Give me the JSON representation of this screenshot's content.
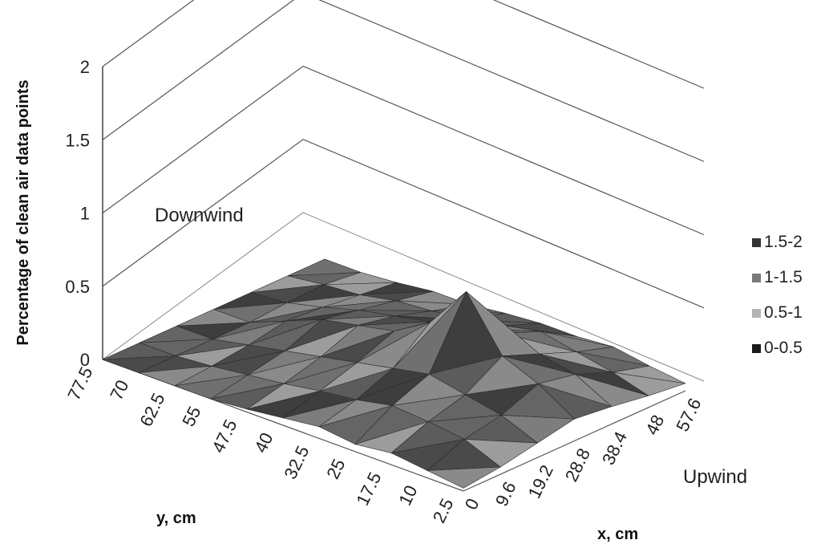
{
  "chart_data": {
    "type": "surface-3d",
    "z_axis": {
      "label": "Percentage of clean air data points",
      "ticks": [
        "0",
        "0.5",
        "1",
        "1.5",
        "2"
      ],
      "range": [
        0,
        2
      ]
    },
    "y_axis": {
      "label": "y, cm",
      "ticks": [
        "77.5",
        "70",
        "62.5",
        "55",
        "47.5",
        "40",
        "32.5",
        "25",
        "17.5",
        "10",
        "2.5"
      ]
    },
    "x_axis": {
      "label": "x, cm",
      "ticks": [
        "0",
        "9.6",
        "19.2",
        "28.8",
        "38.4",
        "48",
        "57.6"
      ]
    },
    "annotations": {
      "downwind": "Downwind",
      "upwind": "Upwind"
    },
    "legend": [
      {
        "label": "1.5-2",
        "color": "#333333"
      },
      {
        "label": "1-1.5",
        "color": "#7a7a7a"
      },
      {
        "label": "0.5-1",
        "color": "#b5b5b5"
      },
      {
        "label": "0-0.5",
        "color": "#1a1a1a"
      }
    ],
    "surface_grid": [
      [
        0.0,
        0.0,
        0.0,
        0.0,
        0.0,
        0.0,
        0.0
      ],
      [
        0.0,
        0.0,
        0.0,
        0.0,
        0.02,
        0.03,
        0.0
      ],
      [
        0.0,
        0.02,
        0.05,
        0.1,
        0.08,
        0.05,
        0.02
      ],
      [
        0.0,
        0.05,
        0.1,
        0.2,
        0.15,
        0.1,
        0.05
      ],
      [
        0.02,
        0.08,
        0.15,
        0.25,
        0.2,
        0.12,
        0.05
      ],
      [
        0.05,
        0.12,
        0.2,
        0.3,
        0.25,
        0.15,
        0.08
      ],
      [
        0.08,
        0.15,
        0.25,
        0.45,
        0.3,
        0.2,
        0.1
      ],
      [
        0.05,
        0.2,
        0.3,
        0.75,
        0.35,
        0.25,
        0.1
      ],
      [
        0.08,
        0.18,
        0.25,
        0.4,
        0.3,
        0.2,
        0.12
      ],
      [
        0.05,
        0.15,
        0.2,
        0.3,
        0.25,
        0.15,
        0.08
      ],
      [
        0.02,
        0.05,
        0.1,
        0.15,
        0.12,
        0.08,
        0.05
      ]
    ]
  }
}
